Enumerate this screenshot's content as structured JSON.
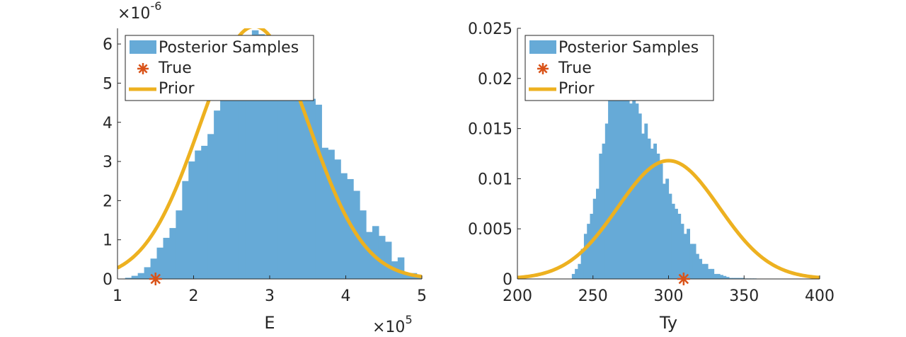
{
  "chart_data": [
    {
      "type": "histogram",
      "xlabel": "E",
      "ylabel": "",
      "x_exponent_label": "×10",
      "x_exponent": "5",
      "y_exponent_label": "×10",
      "y_exponent": "-6",
      "xlim": [
        1,
        5
      ],
      "ylim": [
        0,
        6.4
      ],
      "xticks": [
        "1",
        "2",
        "3",
        "4",
        "5"
      ],
      "yticks": [
        "0",
        "1",
        "2",
        "3",
        "4",
        "5",
        "6"
      ],
      "bin_edges_start": 1.1,
      "bin_width": 0.0833,
      "histogram_counts": [
        0.03,
        0.08,
        0.15,
        0.3,
        0.52,
        0.8,
        1.05,
        1.3,
        1.75,
        2.5,
        3.0,
        3.28,
        3.4,
        3.7,
        4.3,
        4.9,
        5.55,
        5.5,
        5.05,
        5.0,
        6.35,
        6.25,
        5.9,
        5.55,
        5.1,
        5.0,
        5.2,
        5.2,
        4.75,
        4.6,
        4.45,
        3.35,
        3.3,
        3.05,
        2.7,
        2.55,
        2.25,
        1.75,
        1.2,
        1.35,
        1.1,
        0.95,
        0.45,
        0.55,
        0.15,
        0.15,
        0.1,
        0.03
      ],
      "true_value": 1.5,
      "prior": {
        "mean": 2.8,
        "sd": 0.72,
        "peak": 6.45
      },
      "legend": [
        "Posterior Samples",
        "True",
        "Prior"
      ],
      "legend_position": "top-left"
    },
    {
      "type": "histogram",
      "xlabel": "Ty",
      "ylabel": "",
      "xlim": [
        200,
        400
      ],
      "ylim": [
        0,
        0.025
      ],
      "xticks": [
        "200",
        "250",
        "300",
        "350",
        "400"
      ],
      "yticks": [
        "0",
        "0.005",
        "0.01",
        "0.015",
        "0.02",
        "0.025"
      ],
      "bin_edges_start": 236,
      "bin_width": 2.0,
      "histogram_counts": [
        0.0005,
        0.001,
        0.0015,
        0.003,
        0.0045,
        0.0055,
        0.0065,
        0.008,
        0.009,
        0.0125,
        0.0135,
        0.0155,
        0.019,
        0.0195,
        0.0205,
        0.0215,
        0.022,
        0.0205,
        0.0185,
        0.0175,
        0.019,
        0.0175,
        0.0165,
        0.0145,
        0.0155,
        0.014,
        0.013,
        0.0135,
        0.0125,
        0.0115,
        0.0095,
        0.01,
        0.0085,
        0.0075,
        0.007,
        0.0065,
        0.0055,
        0.0045,
        0.005,
        0.0035,
        0.0035,
        0.0025,
        0.002,
        0.0015,
        0.0015,
        0.001,
        0.001,
        0.0005,
        0.0005,
        0.0004,
        0.0003,
        0.0002,
        0.0001,
        0.0001,
        0.0001,
        0.0001,
        0.0001,
        5e-05,
        5e-05,
        5e-05,
        5e-05
      ],
      "true_value": 310,
      "prior": {
        "mean": 300,
        "sd": 33.5,
        "peak": 0.0118
      },
      "legend": [
        "Posterior Samples",
        "True",
        "Prior"
      ],
      "legend_position": "top-left"
    }
  ],
  "colors": {
    "bars": "#66aad7",
    "prior": "#edb120",
    "true_marker": "#d95319",
    "axis": "#262626"
  }
}
